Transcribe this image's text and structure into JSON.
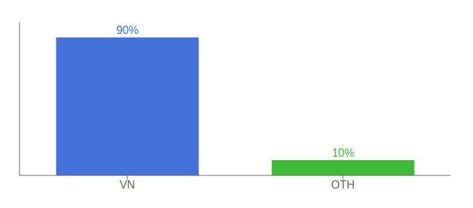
{
  "chart_data": {
    "type": "bar",
    "categories": [
      "VN",
      "OTH"
    ],
    "values": [
      90,
      10
    ],
    "value_labels": [
      "90%",
      "10%"
    ],
    "data_labels": true,
    "colors": [
      "#4472db",
      "#3dbb35"
    ],
    "ylim": [
      0,
      100
    ],
    "tick_labels": "x"
  }
}
